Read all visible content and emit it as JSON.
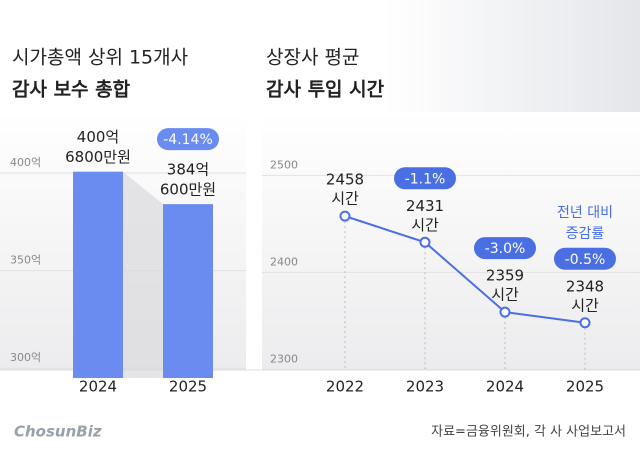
{
  "chart_data": [
    {
      "type": "bar",
      "title": [
        "시가총액 상위 15개사",
        "감사 보수 총합"
      ],
      "categories": [
        "2024",
        "2025"
      ],
      "values": [
        400.68,
        384.06
      ],
      "value_labels": [
        [
          "400억",
          "6800만원"
        ],
        [
          "384억",
          "600만원"
        ]
      ],
      "annotations": [
        "-4.14%"
      ],
      "color": "#6a8bef",
      "ylim": [
        295,
        410
      ],
      "yticks": [
        {
          "value": 300,
          "label": "300억"
        },
        {
          "value": 350,
          "label": "350억"
        },
        {
          "value": 400,
          "label": "400억"
        }
      ],
      "grid": true
    },
    {
      "type": "line",
      "title": [
        "상장사 평균",
        "감사 투입 시간"
      ],
      "categories": [
        "2022",
        "2023",
        "2024",
        "2025"
      ],
      "values": [
        2458,
        2431,
        2359,
        2348
      ],
      "value_labels": [
        [
          "2458",
          "시간"
        ],
        [
          "2431",
          "시간"
        ],
        [
          "2359",
          "시간"
        ],
        [
          "2348",
          "시간"
        ]
      ],
      "annotations": [
        null,
        "-1.1%",
        "-3.0%",
        "-0.5%"
      ],
      "annotation_title": [
        "전년 대비",
        "증감률"
      ],
      "color": "#4a6fe3",
      "ylim": [
        2290,
        2520
      ],
      "yticks": [
        2300,
        2400,
        2500
      ],
      "grid": true
    }
  ],
  "logo": "ChosunBiz",
  "source": "자료=금융위원회, 각 사 사업보고서"
}
